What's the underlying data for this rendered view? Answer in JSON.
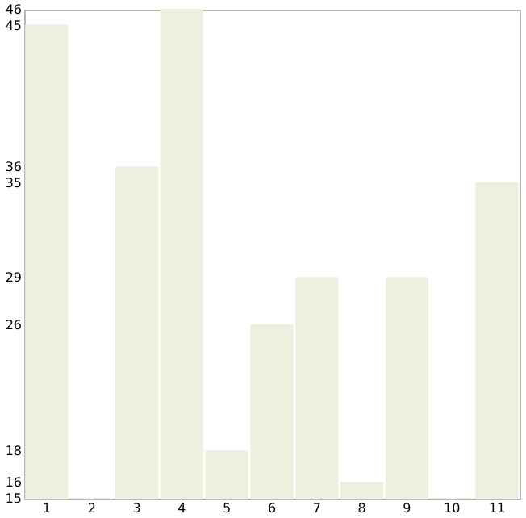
{
  "chart_data": {
    "type": "bar",
    "categories": [
      "1",
      "2",
      "3",
      "4",
      "5",
      "6",
      "7",
      "8",
      "9",
      "10",
      "11"
    ],
    "values": [
      45,
      15,
      36,
      46,
      18,
      26,
      29,
      16,
      29,
      15,
      35
    ],
    "color": "#efefe0",
    "ylim": [
      15,
      46
    ],
    "yticks": [
      15,
      16,
      18,
      26,
      29,
      35,
      36,
      45,
      46
    ],
    "grid": false
  }
}
